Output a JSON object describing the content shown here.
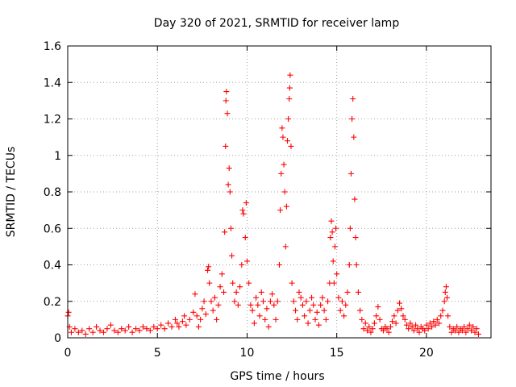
{
  "chart_data": {
    "type": "scatter",
    "title": "Day 320 of 2021, SRMTID for receiver lamp",
    "xlabel": "GPS time / hours",
    "ylabel": "SRMTID / TECUs",
    "xlim": [
      0,
      23.6
    ],
    "ylim": [
      0,
      1.6
    ],
    "xticks": [
      0,
      5,
      10,
      15,
      20
    ],
    "yticks": [
      0,
      0.2,
      0.4,
      0.6,
      0.8,
      1,
      1.2,
      1.4,
      1.6
    ],
    "xtick_labels": [
      "0",
      "5",
      "10",
      "15",
      "20"
    ],
    "ytick_labels": [
      "0",
      "0.2",
      "0.4",
      "0.6",
      "0.8",
      "1",
      "1.2",
      "1.4",
      "1.6"
    ],
    "grid": true,
    "marker": "+",
    "marker_color": "#ff0000",
    "series": [
      {
        "name": "SRMTID",
        "points": [
          [
            0.0,
            0.12
          ],
          [
            0.05,
            0.14
          ],
          [
            0.1,
            0.06
          ],
          [
            0.2,
            0.03
          ],
          [
            0.4,
            0.05
          ],
          [
            0.6,
            0.03
          ],
          [
            0.8,
            0.04
          ],
          [
            1.0,
            0.02
          ],
          [
            1.2,
            0.05
          ],
          [
            1.4,
            0.03
          ],
          [
            1.6,
            0.06
          ],
          [
            1.8,
            0.04
          ],
          [
            2.0,
            0.03
          ],
          [
            2.2,
            0.05
          ],
          [
            2.4,
            0.07
          ],
          [
            2.6,
            0.04
          ],
          [
            2.8,
            0.03
          ],
          [
            3.0,
            0.05
          ],
          [
            3.2,
            0.04
          ],
          [
            3.4,
            0.06
          ],
          [
            3.6,
            0.03
          ],
          [
            3.8,
            0.05
          ],
          [
            4.0,
            0.04
          ],
          [
            4.2,
            0.06
          ],
          [
            4.4,
            0.05
          ],
          [
            4.6,
            0.04
          ],
          [
            4.8,
            0.06
          ],
          [
            5.0,
            0.05
          ],
          [
            5.2,
            0.07
          ],
          [
            5.4,
            0.05
          ],
          [
            5.6,
            0.08
          ],
          [
            5.8,
            0.06
          ],
          [
            6.0,
            0.1
          ],
          [
            6.1,
            0.08
          ],
          [
            6.2,
            0.06
          ],
          [
            6.4,
            0.09
          ],
          [
            6.5,
            0.12
          ],
          [
            6.6,
            0.07
          ],
          [
            6.8,
            0.1
          ],
          [
            7.0,
            0.14
          ],
          [
            7.1,
            0.24
          ],
          [
            7.2,
            0.12
          ],
          [
            7.3,
            0.06
          ],
          [
            7.4,
            0.1
          ],
          [
            7.5,
            0.16
          ],
          [
            7.6,
            0.2
          ],
          [
            7.7,
            0.13
          ],
          [
            7.8,
            0.37
          ],
          [
            7.85,
            0.39
          ],
          [
            7.9,
            0.3
          ],
          [
            8.0,
            0.2
          ],
          [
            8.1,
            0.15
          ],
          [
            8.2,
            0.22
          ],
          [
            8.3,
            0.1
          ],
          [
            8.4,
            0.18
          ],
          [
            8.5,
            0.28
          ],
          [
            8.6,
            0.35
          ],
          [
            8.7,
            0.25
          ],
          [
            8.75,
            0.58
          ],
          [
            8.8,
            1.05
          ],
          [
            8.82,
            1.3
          ],
          [
            8.85,
            1.35
          ],
          [
            8.9,
            1.23
          ],
          [
            8.95,
            0.84
          ],
          [
            9.0,
            0.93
          ],
          [
            9.05,
            0.8
          ],
          [
            9.1,
            0.6
          ],
          [
            9.15,
            0.45
          ],
          [
            9.2,
            0.3
          ],
          [
            9.3,
            0.2
          ],
          [
            9.4,
            0.25
          ],
          [
            9.5,
            0.18
          ],
          [
            9.6,
            0.28
          ],
          [
            9.7,
            0.4
          ],
          [
            9.75,
            0.7
          ],
          [
            9.8,
            0.68
          ],
          [
            9.9,
            0.55
          ],
          [
            9.95,
            0.74
          ],
          [
            10.0,
            0.42
          ],
          [
            10.1,
            0.3
          ],
          [
            10.2,
            0.18
          ],
          [
            10.3,
            0.15
          ],
          [
            10.4,
            0.08
          ],
          [
            10.5,
            0.22
          ],
          [
            10.6,
            0.18
          ],
          [
            10.7,
            0.12
          ],
          [
            10.8,
            0.25
          ],
          [
            10.9,
            0.2
          ],
          [
            11.0,
            0.1
          ],
          [
            11.1,
            0.16
          ],
          [
            11.2,
            0.06
          ],
          [
            11.3,
            0.2
          ],
          [
            11.4,
            0.24
          ],
          [
            11.5,
            0.18
          ],
          [
            11.6,
            0.1
          ],
          [
            11.7,
            0.2
          ],
          [
            11.8,
            0.4
          ],
          [
            11.85,
            0.7
          ],
          [
            11.9,
            0.9
          ],
          [
            11.95,
            1.15
          ],
          [
            12.0,
            1.1
          ],
          [
            12.05,
            0.95
          ],
          [
            12.1,
            0.8
          ],
          [
            12.15,
            0.5
          ],
          [
            12.2,
            0.72
          ],
          [
            12.25,
            1.08
          ],
          [
            12.3,
            1.2
          ],
          [
            12.35,
            1.31
          ],
          [
            12.38,
            1.37
          ],
          [
            12.4,
            1.44
          ],
          [
            12.45,
            1.05
          ],
          [
            12.5,
            0.3
          ],
          [
            12.6,
            0.2
          ],
          [
            12.7,
            0.15
          ],
          [
            12.8,
            0.1
          ],
          [
            12.9,
            0.25
          ],
          [
            13.0,
            0.22
          ],
          [
            13.1,
            0.18
          ],
          [
            13.2,
            0.12
          ],
          [
            13.3,
            0.2
          ],
          [
            13.4,
            0.08
          ],
          [
            13.5,
            0.15
          ],
          [
            13.6,
            0.22
          ],
          [
            13.7,
            0.18
          ],
          [
            13.8,
            0.1
          ],
          [
            13.9,
            0.14
          ],
          [
            14.0,
            0.07
          ],
          [
            14.1,
            0.18
          ],
          [
            14.2,
            0.22
          ],
          [
            14.3,
            0.15
          ],
          [
            14.4,
            0.1
          ],
          [
            14.5,
            0.2
          ],
          [
            14.6,
            0.3
          ],
          [
            14.65,
            0.55
          ],
          [
            14.7,
            0.64
          ],
          [
            14.75,
            0.58
          ],
          [
            14.8,
            0.42
          ],
          [
            14.85,
            0.3
          ],
          [
            14.9,
            0.5
          ],
          [
            14.95,
            0.6
          ],
          [
            15.0,
            0.35
          ],
          [
            15.1,
            0.22
          ],
          [
            15.2,
            0.15
          ],
          [
            15.3,
            0.2
          ],
          [
            15.4,
            0.12
          ],
          [
            15.5,
            0.18
          ],
          [
            15.6,
            0.25
          ],
          [
            15.7,
            0.4
          ],
          [
            15.75,
            0.6
          ],
          [
            15.8,
            0.9
          ],
          [
            15.85,
            1.2
          ],
          [
            15.9,
            1.31
          ],
          [
            15.95,
            1.1
          ],
          [
            16.0,
            0.76
          ],
          [
            16.05,
            0.55
          ],
          [
            16.1,
            0.4
          ],
          [
            16.2,
            0.25
          ],
          [
            16.3,
            0.15
          ],
          [
            16.4,
            0.1
          ],
          [
            16.5,
            0.05
          ],
          [
            16.6,
            0.08
          ],
          [
            16.7,
            0.04
          ],
          [
            16.8,
            0.06
          ],
          [
            16.9,
            0.03
          ],
          [
            17.0,
            0.05
          ],
          [
            17.1,
            0.08
          ],
          [
            17.2,
            0.12
          ],
          [
            17.3,
            0.17
          ],
          [
            17.4,
            0.1
          ],
          [
            17.5,
            0.05
          ],
          [
            17.6,
            0.04
          ],
          [
            17.7,
            0.06
          ],
          [
            17.8,
            0.05
          ],
          [
            17.9,
            0.03
          ],
          [
            18.0,
            0.06
          ],
          [
            18.1,
            0.09
          ],
          [
            18.2,
            0.12
          ],
          [
            18.3,
            0.08
          ],
          [
            18.4,
            0.15
          ],
          [
            18.5,
            0.19
          ],
          [
            18.6,
            0.16
          ],
          [
            18.7,
            0.12
          ],
          [
            18.8,
            0.1
          ],
          [
            18.9,
            0.07
          ],
          [
            19.0,
            0.05
          ],
          [
            19.1,
            0.08
          ],
          [
            19.2,
            0.06
          ],
          [
            19.3,
            0.04
          ],
          [
            19.4,
            0.07
          ],
          [
            19.5,
            0.05
          ],
          [
            19.6,
            0.03
          ],
          [
            19.7,
            0.06
          ],
          [
            19.8,
            0.05
          ],
          [
            19.9,
            0.04
          ],
          [
            20.0,
            0.07
          ],
          [
            20.1,
            0.05
          ],
          [
            20.2,
            0.08
          ],
          [
            20.3,
            0.06
          ],
          [
            20.4,
            0.09
          ],
          [
            20.5,
            0.07
          ],
          [
            20.6,
            0.1
          ],
          [
            20.7,
            0.08
          ],
          [
            20.8,
            0.12
          ],
          [
            20.9,
            0.15
          ],
          [
            21.0,
            0.2
          ],
          [
            21.05,
            0.25
          ],
          [
            21.1,
            0.28
          ],
          [
            21.15,
            0.22
          ],
          [
            21.2,
            0.12
          ],
          [
            21.3,
            0.06
          ],
          [
            21.4,
            0.03
          ],
          [
            21.5,
            0.05
          ],
          [
            21.6,
            0.04
          ],
          [
            21.7,
            0.06
          ],
          [
            21.8,
            0.03
          ],
          [
            21.9,
            0.05
          ],
          [
            22.0,
            0.04
          ],
          [
            22.1,
            0.06
          ],
          [
            22.2,
            0.03
          ],
          [
            22.3,
            0.05
          ],
          [
            22.4,
            0.07
          ],
          [
            22.5,
            0.04
          ],
          [
            22.6,
            0.06
          ],
          [
            22.7,
            0.03
          ],
          [
            22.8,
            0.05
          ],
          [
            22.9,
            0.02
          ]
        ]
      }
    ]
  }
}
